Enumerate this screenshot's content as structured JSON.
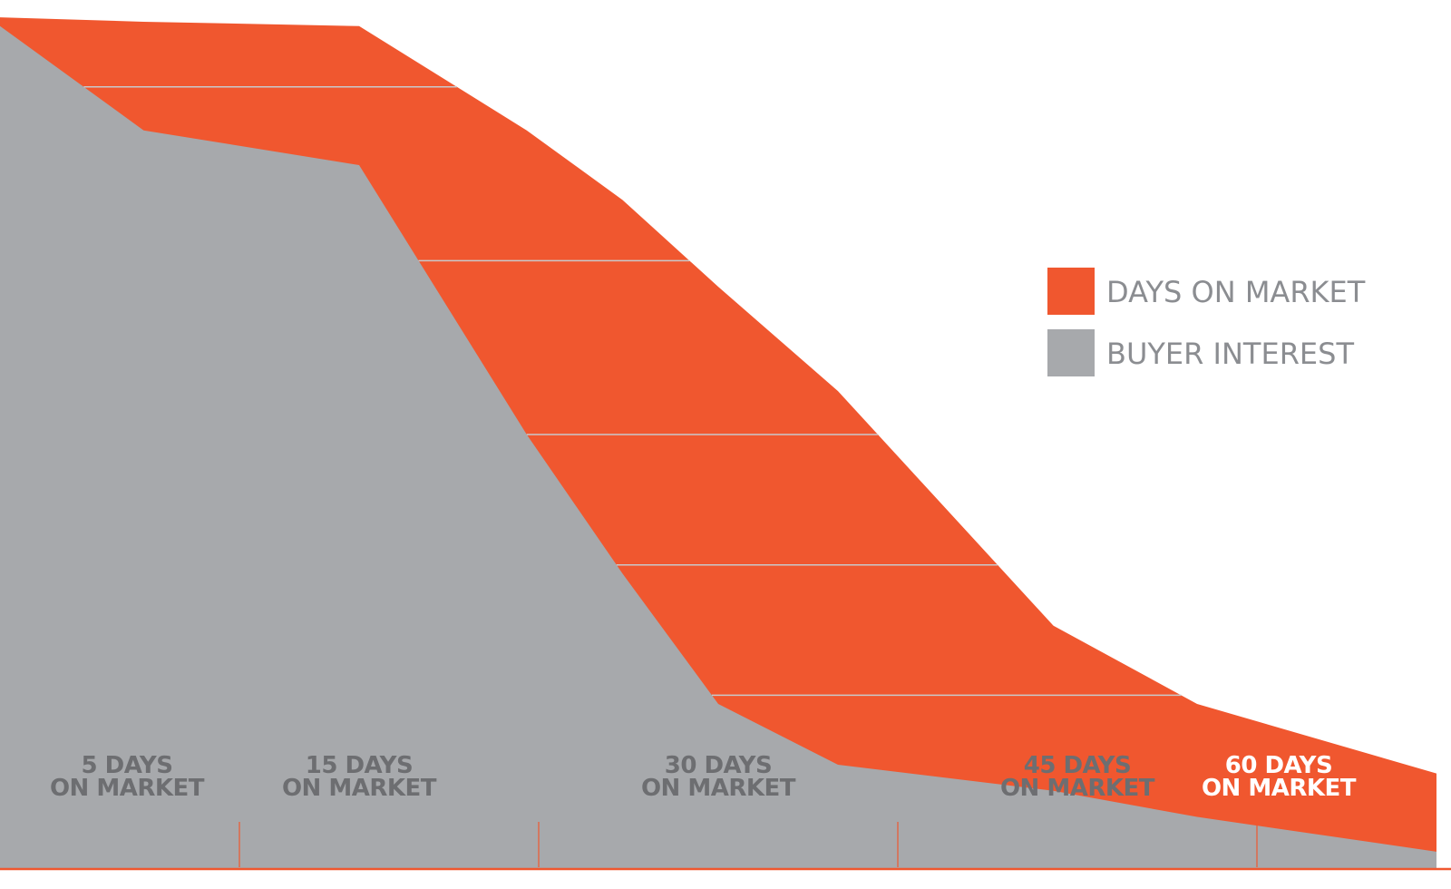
{
  "chart_data": {
    "type": "area",
    "x": [
      0,
      6,
      15,
      22,
      26,
      30,
      35,
      44,
      50,
      60
    ],
    "series": [
      {
        "name": "DAYS ON MARKET",
        "values": [
          98,
          97.5,
          97,
          85,
          77,
          67,
          55,
          28,
          19,
          11
        ]
      },
      {
        "name": "BUYER INTEREST",
        "values": [
          97,
          85,
          81,
          50,
          34,
          19,
          12,
          9,
          6,
          2
        ]
      }
    ],
    "categories": [
      {
        "x": 5,
        "line1": "5 DAYS",
        "line2": "ON MARKET"
      },
      {
        "x": 15,
        "line1": "15 DAYS",
        "line2": "ON MARKET"
      },
      {
        "x": 30,
        "line1": "30 DAYS",
        "line2": "ON MARKET"
      },
      {
        "x": 45,
        "line1": "45 DAYS",
        "line2": "ON MARKET"
      },
      {
        "x": 60,
        "line1": "60 DAYS",
        "line2": "ON MARKET"
      }
    ],
    "gridlines": [
      90,
      70,
      50,
      35,
      20
    ],
    "xlim": [
      0,
      60
    ],
    "ylim": [
      0,
      100
    ],
    "legend": "right",
    "grid": true,
    "colors": {
      "days_on_market": "#f0572f",
      "buyer_interest": "#a7a9ac",
      "gridline": "#c8c9cb",
      "axis": "#f0572f",
      "label_on_gray": "#6d6e71",
      "label_on_orange": "#ffffff"
    }
  }
}
